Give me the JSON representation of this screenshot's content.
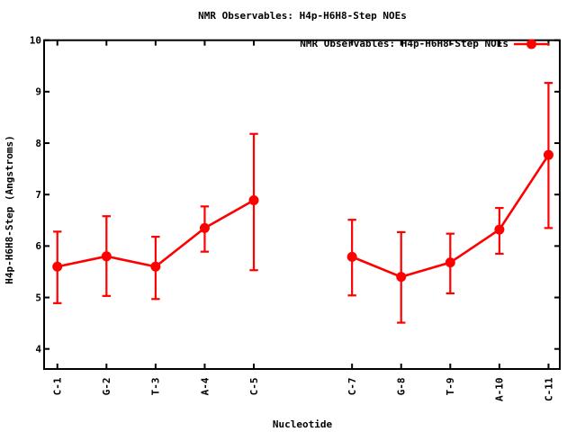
{
  "chart_data": {
    "type": "line",
    "title": "NMR Observables: H4p-H6H8-Step NOEs",
    "xlabel": "Nucleotide",
    "ylabel": "H4p-H6H8-Step (Angstroms)",
    "legend": {
      "label": "NMR Observables: H4p-H6H8-Step NOEs",
      "position": "top-right-inside",
      "marker": "filled-circle"
    },
    "grid": false,
    "background_color": "#ffffff",
    "axis_color": "#000000",
    "series_color": "#ff0000",
    "yticks": [
      4,
      5,
      6,
      7,
      8,
      9,
      10
    ],
    "ylim": [
      3.61,
      10.0
    ],
    "xlim": [
      0.73,
      11.23
    ],
    "categories": [
      "C-1",
      "G-2",
      "T-3",
      "A-4",
      "C-5",
      "C-7",
      "G-8",
      "T-9",
      "A-10",
      "C-11"
    ],
    "slots": [
      1,
      2,
      3,
      4,
      5,
      7,
      8,
      9,
      10,
      11
    ],
    "series": [
      {
        "name": "NMR Observables: H4p-H6H8-Step NOEs",
        "values": [
          5.6,
          5.8,
          5.6,
          6.35,
          6.89,
          5.79,
          5.4,
          5.68,
          6.32,
          7.77
        ],
        "err_low": [
          4.89,
          5.03,
          4.97,
          5.89,
          5.53,
          5.04,
          4.51,
          5.08,
          5.85,
          6.35
        ],
        "err_high": [
          6.28,
          6.58,
          6.18,
          6.77,
          8.18,
          6.51,
          6.27,
          6.24,
          6.74,
          9.17
        ],
        "segments": [
          [
            0,
            1,
            2,
            3,
            4
          ],
          [
            5,
            6,
            7,
            8,
            9
          ]
        ]
      }
    ]
  }
}
